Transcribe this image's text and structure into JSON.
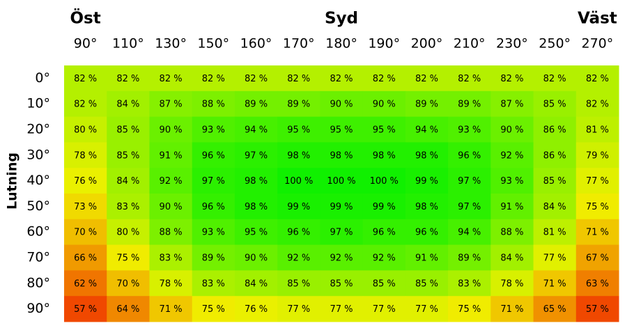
{
  "chart_data": {
    "type": "heatmap",
    "y_title": "Lutning",
    "annotations": [
      {
        "text": "Öst",
        "category": "90°"
      },
      {
        "text": "Syd",
        "category": "180°"
      },
      {
        "text": "Väst",
        "category": "270°"
      }
    ],
    "x_categories": [
      "90°",
      "110°",
      "130°",
      "150°",
      "160°",
      "170°",
      "180°",
      "190°",
      "200°",
      "210°",
      "230°",
      "250°",
      "270°"
    ],
    "y_categories": [
      "0°",
      "10°",
      "20°",
      "30°",
      "40°",
      "50°",
      "60°",
      "70°",
      "80°",
      "90°"
    ],
    "values": [
      [
        82,
        82,
        82,
        82,
        82,
        82,
        82,
        82,
        82,
        82,
        82,
        82,
        82
      ],
      [
        82,
        84,
        87,
        88,
        89,
        89,
        90,
        90,
        89,
        89,
        87,
        85,
        82
      ],
      [
        80,
        85,
        90,
        93,
        94,
        95,
        95,
        95,
        94,
        93,
        90,
        86,
        81
      ],
      [
        78,
        85,
        91,
        96,
        97,
        98,
        98,
        98,
        98,
        96,
        92,
        86,
        79
      ],
      [
        76,
        84,
        92,
        97,
        98,
        100,
        100,
        100,
        99,
        97,
        93,
        85,
        77
      ],
      [
        73,
        83,
        90,
        96,
        98,
        99,
        99,
        99,
        98,
        97,
        91,
        84,
        75
      ],
      [
        70,
        80,
        88,
        93,
        95,
        96,
        97,
        96,
        96,
        94,
        88,
        81,
        71
      ],
      [
        66,
        75,
        83,
        89,
        90,
        92,
        92,
        92,
        91,
        89,
        84,
        77,
        67
      ],
      [
        62,
        70,
        78,
        83,
        84,
        85,
        85,
        85,
        85,
        83,
        78,
        71,
        63
      ],
      [
        57,
        64,
        71,
        75,
        76,
        77,
        77,
        77,
        77,
        75,
        71,
        65,
        57
      ]
    ],
    "value_labels": [
      [
        "82 %",
        "82 %",
        "82 %",
        "82 %",
        "82 %",
        "82 %",
        "82 %",
        "82 %",
        "82 %",
        "82 %",
        "82 %",
        "82 %",
        "82 %"
      ],
      [
        "82 %",
        "84 %",
        "87 %",
        "88 %",
        "89 %",
        "89 %",
        "90 %",
        "90 %",
        "89 %",
        "89 %",
        "87 %",
        "85 %",
        "82 %"
      ],
      [
        "80 %",
        "85 %",
        "90 %",
        "93 %",
        "94 %",
        "95 %",
        "95 %",
        "95 %",
        "94 %",
        "93 %",
        "90 %",
        "86 %",
        "81 %"
      ],
      [
        "78 %",
        "85 %",
        "91 %",
        "96 %",
        "97 %",
        "98 %",
        "98 %",
        "98 %",
        "98 %",
        "96 %",
        "92 %",
        "86 %",
        "79 %"
      ],
      [
        "76 %",
        "84 %",
        "92 %",
        "97 %",
        "98 %",
        "100 %",
        "100 %",
        "100 %",
        "99 %",
        "97 %",
        "93 %",
        "85 %",
        "77 %"
      ],
      [
        "73 %",
        "83 %",
        "90 %",
        "96 %",
        "98 %",
        "99 %",
        "99 %",
        "99 %",
        "98 %",
        "97 %",
        "91 %",
        "84 %",
        "75 %"
      ],
      [
        "70 %",
        "80 %",
        "88 %",
        "93 %",
        "95 %",
        "96 %",
        "97 %",
        "96 %",
        "96 %",
        "94 %",
        "88 %",
        "81 %",
        "71 %"
      ],
      [
        "66 %",
        "75 %",
        "83 %",
        "89 %",
        "90 %",
        "92 %",
        "92 %",
        "92 %",
        "91 %",
        "89 %",
        "84 %",
        "77 %",
        "67 %"
      ],
      [
        "62 %",
        "70 %",
        "78 %",
        "83 %",
        "84 %",
        "85 %",
        "85 %",
        "85 %",
        "85 %",
        "83 %",
        "78 %",
        "71 %",
        "63 %"
      ],
      [
        "57 %",
        "64 %",
        "71 %",
        "75 %",
        "76 %",
        "77 %",
        "77 %",
        "77 %",
        "77 %",
        "75 %",
        "71 %",
        "65 %",
        "57 %"
      ]
    ]
  }
}
